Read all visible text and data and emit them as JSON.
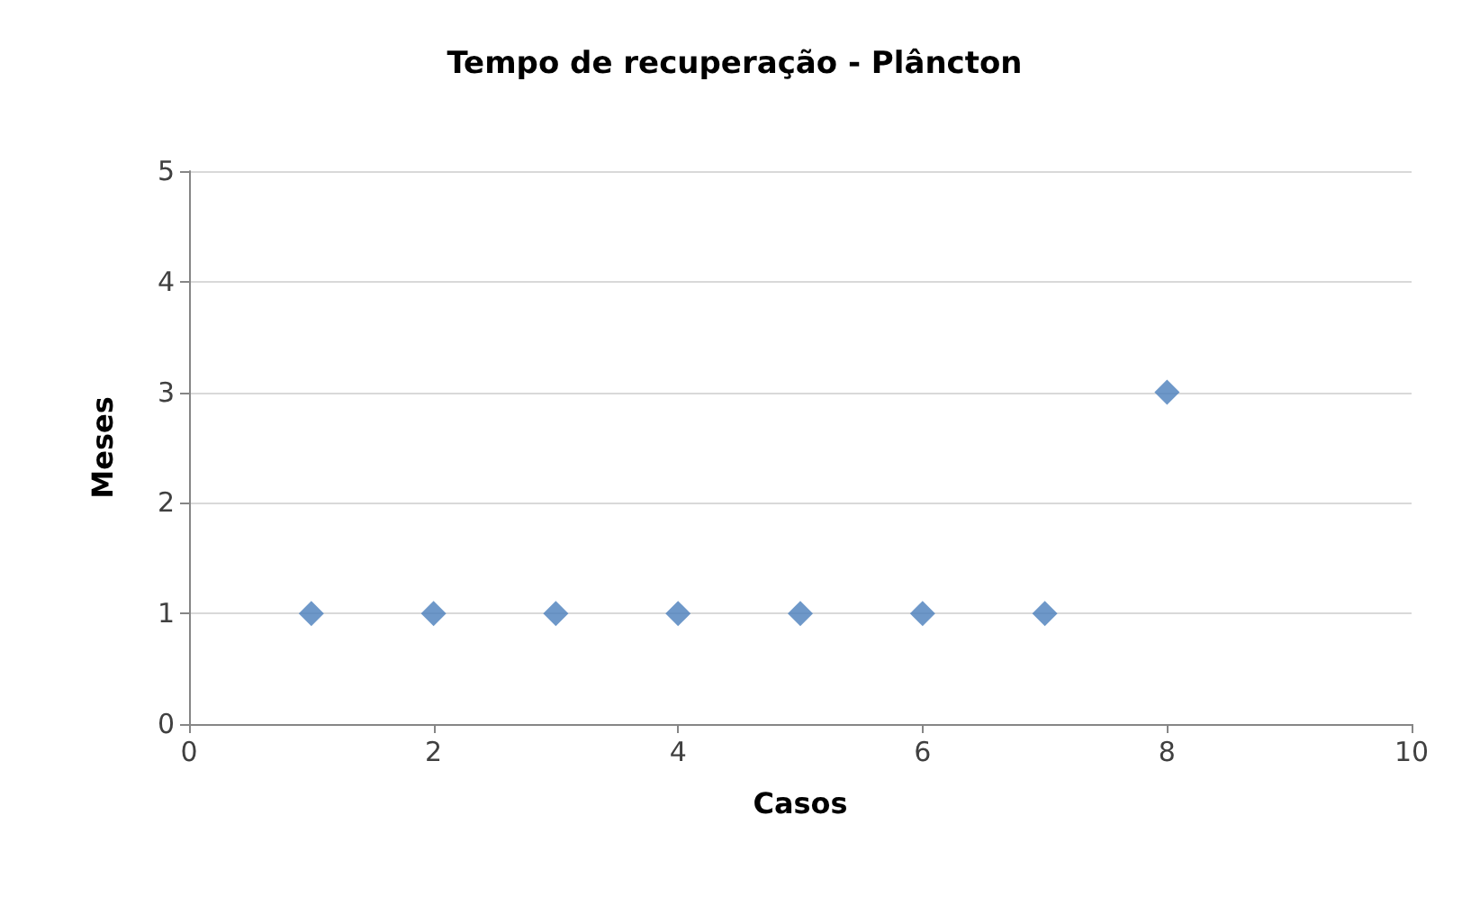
{
  "chart_data": {
    "type": "scatter",
    "title": "Tempo de recuperação - Plâncton",
    "xlabel": "Casos",
    "ylabel": "Meses",
    "x": [
      1,
      2,
      3,
      4,
      5,
      6,
      7,
      8
    ],
    "values": [
      1,
      1,
      1,
      1,
      1,
      1,
      1,
      3
    ],
    "color": "#4a7ebb",
    "marker": "diamond",
    "grid": "y",
    "xlim": [
      0,
      10
    ],
    "xticks": [
      0,
      2,
      4,
      6,
      8,
      10
    ],
    "ylim": [
      0,
      5
    ],
    "yticks": [
      0,
      1,
      2,
      3,
      4,
      5
    ]
  }
}
